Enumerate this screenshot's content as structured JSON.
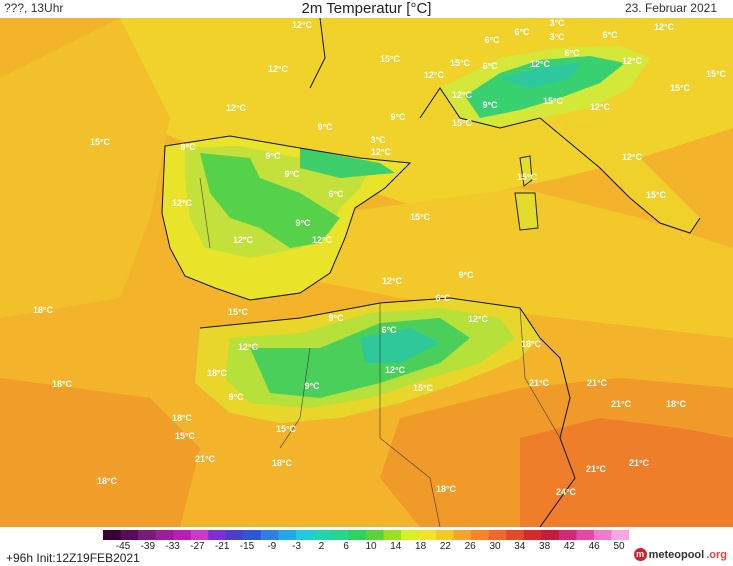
{
  "header": {
    "left": "???, 13Uhr",
    "title": "2m Temperatur [°C]",
    "date": "23. Februar 2021"
  },
  "footer": {
    "init": "+96h Init:12Z19FEB2021",
    "logo_brand": "meteopool",
    "logo_tld": ".org"
  },
  "legend": {
    "ticks": [
      "-45",
      "-39",
      "-33",
      "-27",
      "-21",
      "-15",
      "-9",
      "-3",
      "2",
      "6",
      "10",
      "14",
      "18",
      "22",
      "26",
      "30",
      "34",
      "38",
      "42",
      "46",
      "50"
    ],
    "colors": [
      "#3a003a",
      "#5a0a5a",
      "#7a1a7a",
      "#9a1e9a",
      "#b41fb4",
      "#c83ac8",
      "#7d2fd0",
      "#4a3fd0",
      "#2f56d8",
      "#2f7fe0",
      "#26a6e6",
      "#24c6e0",
      "#22d4b0",
      "#2ad48a",
      "#2ed25c",
      "#5ad23a",
      "#9ae02a",
      "#d8ee2a",
      "#f4e32a",
      "#f4c82a",
      "#f4a52a",
      "#f3862a",
      "#ef6a2a",
      "#e6482a",
      "#d42a2a",
      "#c21d3c",
      "#d02a76",
      "#e04aa8",
      "#ef7ad0",
      "#f6a8e4"
    ]
  },
  "map_labels": [
    {
      "t": "12°C"
    },
    {
      "t": "12°C"
    },
    {
      "t": "15°C"
    },
    {
      "t": "15°C"
    },
    {
      "t": "12°C"
    },
    {
      "t": "12°C"
    },
    {
      "t": "15°C"
    },
    {
      "t": "12°C"
    },
    {
      "t": "6°C"
    },
    {
      "t": "3°C"
    },
    {
      "t": "6°C"
    },
    {
      "t": "6°C"
    },
    {
      "t": "12°C"
    },
    {
      "t": "3°C"
    },
    {
      "t": "6°C"
    },
    {
      "t": "9°C"
    },
    {
      "t": "15°C"
    },
    {
      "t": "12°C"
    },
    {
      "t": "15°C"
    },
    {
      "t": "15°C"
    },
    {
      "t": "12°C"
    },
    {
      "t": "15°C"
    },
    {
      "t": "12°C"
    },
    {
      "t": "6°C"
    },
    {
      "t": "9°C"
    },
    {
      "t": "9°C"
    },
    {
      "t": "3°C"
    },
    {
      "t": "12°C"
    },
    {
      "t": "9°C"
    },
    {
      "t": "9°C"
    },
    {
      "t": "9°C"
    },
    {
      "t": "6°C"
    },
    {
      "t": "12°C"
    },
    {
      "t": "9°C"
    },
    {
      "t": "12°C"
    },
    {
      "t": "12°C"
    },
    {
      "t": "15°C"
    },
    {
      "t": "15°C"
    },
    {
      "t": "12°C"
    },
    {
      "t": "15°C"
    },
    {
      "t": "18°C"
    },
    {
      "t": "15°C"
    },
    {
      "t": "9°C"
    },
    {
      "t": "6°C"
    },
    {
      "t": "12°C"
    },
    {
      "t": "9°C"
    },
    {
      "t": "6°C"
    },
    {
      "t": "12°C"
    },
    {
      "t": "18°C"
    },
    {
      "t": "18°C"
    },
    {
      "t": "18°C"
    },
    {
      "t": "12°C"
    },
    {
      "t": "9°C"
    },
    {
      "t": "9°C"
    },
    {
      "t": "12°C"
    },
    {
      "t": "15°C"
    },
    {
      "t": "21°C"
    },
    {
      "t": "21°C"
    },
    {
      "t": "21°C"
    },
    {
      "t": "18°C"
    },
    {
      "t": "18°C"
    },
    {
      "t": "15°C"
    },
    {
      "t": "15°C"
    },
    {
      "t": "18°C"
    },
    {
      "t": "21°C"
    },
    {
      "t": "18°C"
    },
    {
      "t": "21°C"
    },
    {
      "t": "21°C"
    },
    {
      "t": "18°C"
    },
    {
      "t": "24°C"
    }
  ]
}
